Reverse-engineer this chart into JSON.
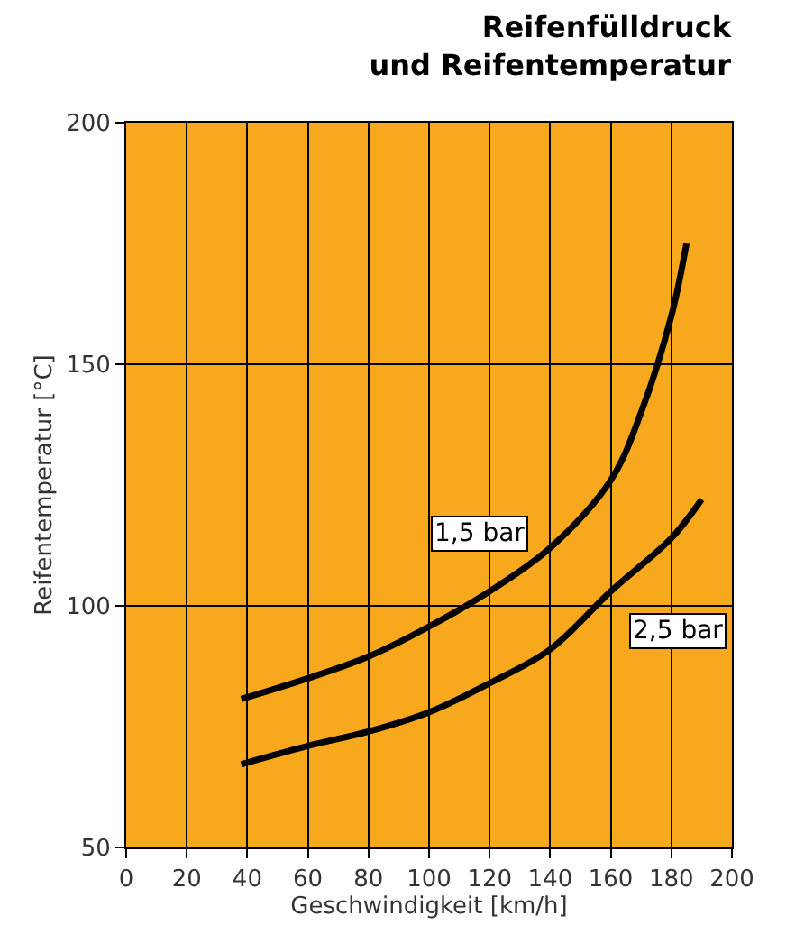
{
  "chart_data": {
    "type": "line",
    "title": "Reifenfülldruck\nund Reifentemperatur",
    "xlabel": "Geschwindigkeit [km/h]",
    "ylabel": "Reifentemperatur [°C]",
    "xlim": [
      0,
      200
    ],
    "xticks": [
      0,
      20,
      40,
      60,
      80,
      100,
      120,
      140,
      160,
      180,
      200
    ],
    "ylim": [
      50,
      200
    ],
    "yticks": [
      50,
      100,
      150,
      200
    ],
    "grid": true,
    "legend": false,
    "series": [
      {
        "name": "1,5 bar",
        "color": "#000000",
        "x": [
          38,
          60,
          80,
          100,
          120,
          140,
          160,
          170,
          180,
          185
        ],
        "values": [
          80.7,
          85,
          89.5,
          95.7,
          103,
          112,
          126,
          140,
          160,
          175
        ]
      },
      {
        "name": "2,5 bar",
        "color": "#000000",
        "x": [
          38,
          60,
          80,
          100,
          120,
          140,
          160,
          180,
          190
        ],
        "values": [
          67.2,
          71,
          74,
          78,
          84,
          91,
          103,
          114,
          122
        ]
      }
    ]
  }
}
